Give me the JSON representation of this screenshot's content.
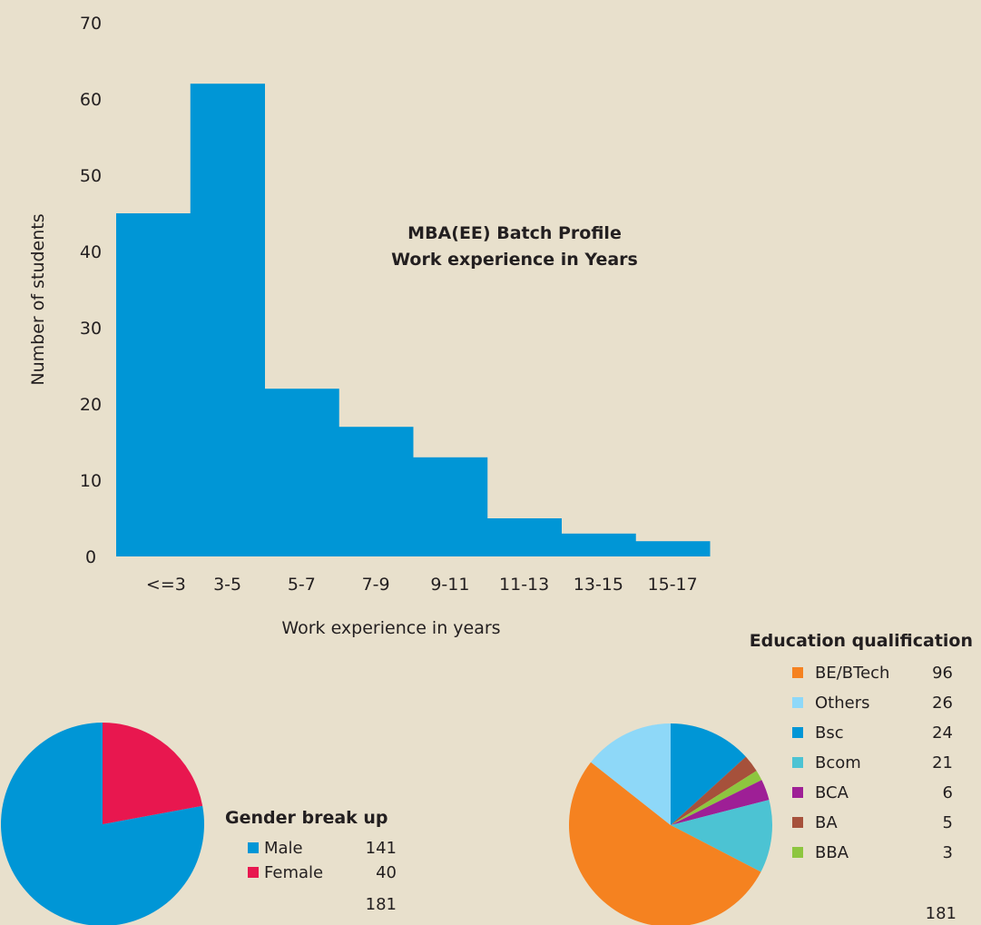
{
  "histogram": {
    "type": "bar",
    "title_line1": "MBA(EE) Batch Profile",
    "title_line2": "Work experience in Years",
    "xlabel": "Work experience in years",
    "ylabel": "Number of students",
    "categories": [
      "<=3",
      "3-5",
      "5-7",
      "7-9",
      "9-11",
      "11-13",
      "13-15",
      "15-17"
    ],
    "values": [
      45,
      62,
      22,
      17,
      13,
      5,
      3,
      2
    ],
    "yticks": [
      "0",
      "10",
      "20",
      "30",
      "40",
      "50",
      "60",
      "70"
    ],
    "ylim": [
      0,
      70
    ],
    "color": "#0096d6"
  },
  "chart_data": [
    {
      "type": "bar",
      "title": "MBA(EE) Batch Profile Work experience in Years",
      "xlabel": "Work experience in years",
      "ylabel": "Number of students",
      "categories": [
        "<=3",
        "3-5",
        "5-7",
        "7-9",
        "9-11",
        "11-13",
        "13-15",
        "15-17"
      ],
      "values": [
        45,
        62,
        22,
        17,
        13,
        5,
        3,
        2
      ],
      "ylim": [
        0,
        70
      ],
      "grid": false
    },
    {
      "type": "pie",
      "title": "Gender break up",
      "labels": [
        "Male",
        "Female"
      ],
      "values": [
        141,
        40
      ],
      "total": 181
    },
    {
      "type": "pie",
      "title": "Education qualification",
      "labels": [
        "BE/BTech",
        "Others",
        "Bsc",
        "Bcom",
        "BCA",
        "BA",
        "BBA"
      ],
      "values": [
        96,
        26,
        24,
        21,
        6,
        5,
        3
      ],
      "total": 181
    }
  ],
  "gender": {
    "title": "Gender break up",
    "items": [
      {
        "label": "Male",
        "value": "141",
        "color": "#0096d6"
      },
      {
        "label": "Female",
        "value": "40",
        "color": "#e8174f"
      }
    ],
    "total": "181"
  },
  "education": {
    "title": "Education qualification",
    "items": [
      {
        "label": "BE/BTech",
        "value": "96",
        "color": "#f58220"
      },
      {
        "label": "Others",
        "value": "26",
        "color": "#8ed8f8"
      },
      {
        "label": "Bsc",
        "value": "24",
        "color": "#0096d6"
      },
      {
        "label": "Bcom",
        "value": "21",
        "color": "#4cc3d3"
      },
      {
        "label": "BCA",
        "value": "6",
        "color": "#9e1f96"
      },
      {
        "label": "BA",
        "value": "5",
        "color": "#a6513b"
      },
      {
        "label": "BBA",
        "value": "3",
        "color": "#8dc63f"
      }
    ],
    "total": "181"
  }
}
